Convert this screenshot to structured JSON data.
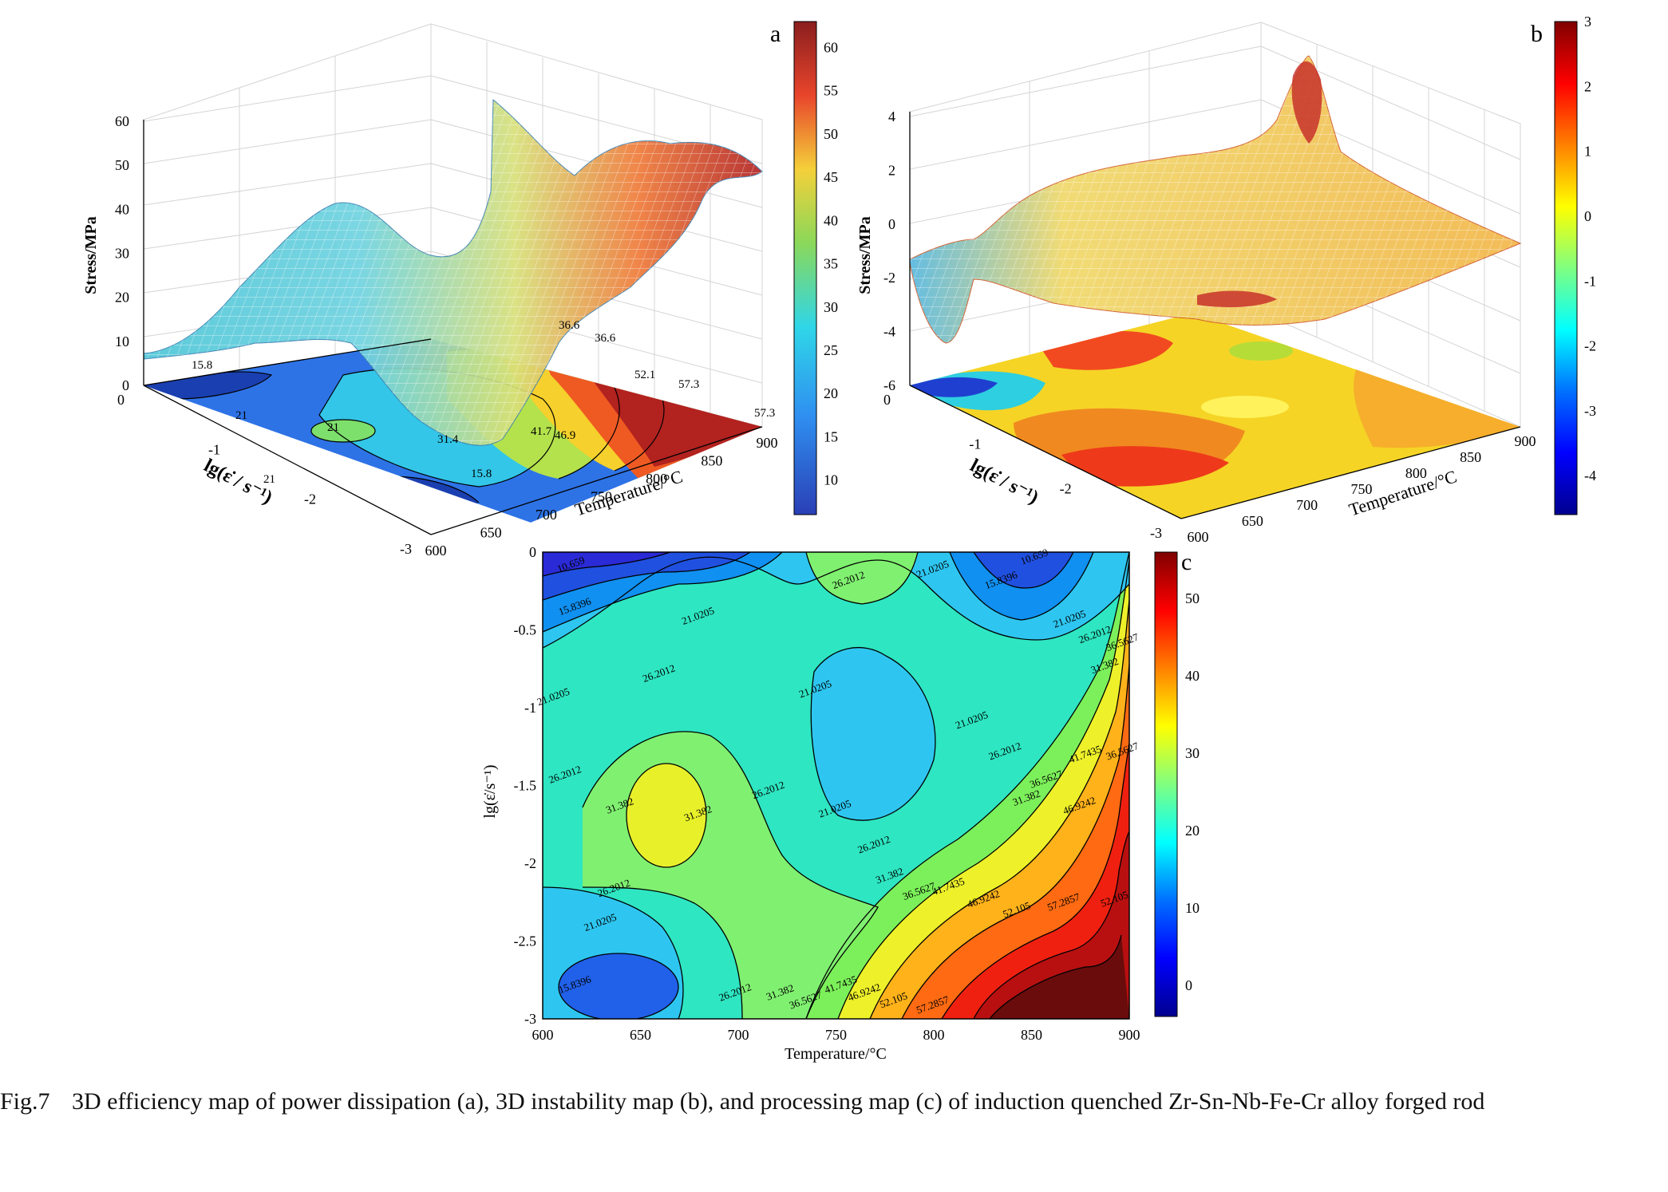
{
  "figure_caption": {
    "number": "Fig.7",
    "text": "3D efficiency map of power dissipation (a), 3D instability map (b), and processing map (c) of induction quenched Zr-Sn-Nb-Fe-Cr alloy forged rod"
  },
  "colors": {
    "jet": [
      "#00008f",
      "#0000ff",
      "#0080ff",
      "#00ffff",
      "#80ff80",
      "#ffff00",
      "#ff8000",
      "#ff0000",
      "#800000"
    ],
    "line": "#000000",
    "grid": "#cccccc",
    "caption_text": "#111111"
  },
  "chart_data": [
    {
      "id": "a",
      "panel_label": "a",
      "type": "3d-surface-with-contour",
      "title": "",
      "zlabel": "Stress/MPa",
      "ylabel": "lg(ε̇ / s⁻¹)",
      "xlabel": "Temperature/°C",
      "x_ticks": [
        "600",
        "650",
        "700",
        "750",
        "800",
        "850",
        "900"
      ],
      "y_ticks": [
        "0",
        "-1",
        "-2",
        "-3"
      ],
      "z_ticks": [
        "0",
        "10",
        "20",
        "30",
        "40",
        "50",
        "60"
      ],
      "xlim": [
        600,
        900
      ],
      "ylim": [
        -3,
        0
      ],
      "zlim": [
        0,
        60
      ],
      "colorbar": {
        "ticks": [
          "10",
          "15",
          "20",
          "25",
          "30",
          "35",
          "40",
          "45",
          "50",
          "55",
          "60"
        ],
        "range": [
          6,
          63
        ]
      },
      "contour_labels": [
        "36.6",
        "36.6",
        "52.1",
        "57.3",
        "57.3",
        "21",
        "21",
        "31.4",
        "41.7",
        "46.9",
        "15.8",
        "15.8",
        "21"
      ]
    },
    {
      "id": "b",
      "panel_label": "b",
      "type": "3d-surface-with-contour",
      "title": "",
      "zlabel": "Stress/MPa",
      "ylabel": "lg(ε̇ / s⁻¹)",
      "xlabel": "Temperature/°C",
      "x_ticks": [
        "600",
        "650",
        "700",
        "750",
        "800",
        "850",
        "900"
      ],
      "y_ticks": [
        "0",
        "-1",
        "-2",
        "-3"
      ],
      "z_ticks": [
        "-6",
        "-4",
        "-2",
        "0",
        "2",
        "4"
      ],
      "xlim": [
        600,
        900
      ],
      "ylim": [
        -3,
        0
      ],
      "zlim": [
        -6,
        4
      ],
      "colorbar": {
        "ticks": [
          "3",
          "2",
          "1",
          "0",
          "-1",
          "-2",
          "-3",
          "-4"
        ],
        "range": [
          -4.6,
          3
        ]
      }
    },
    {
      "id": "c",
      "panel_label": "c",
      "type": "contour",
      "title": "",
      "xlabel": "Temperature/°C",
      "ylabel": "lg(ε̇/s⁻¹)",
      "x_ticks": [
        "600",
        "650",
        "700",
        "750",
        "800",
        "850",
        "900"
      ],
      "y_ticks": [
        "0",
        "-0.5",
        "-1",
        "-1.5",
        "-2",
        "-2.5",
        "-3"
      ],
      "xlim": [
        600,
        900
      ],
      "ylim": [
        -3,
        0
      ],
      "levels": [
        10.659,
        15.8396,
        21.0205,
        26.2012,
        31.382,
        36.5627,
        41.7435,
        46.9242,
        52.105,
        57.2857
      ],
      "colorbar": {
        "ticks": [
          "50",
          "40",
          "30",
          "20",
          "10",
          "0"
        ],
        "range": [
          -4,
          56
        ]
      },
      "contour_labels": [
        {
          "text": "10.659",
          "x": 615,
          "y": -0.1
        },
        {
          "text": "15.8396",
          "x": 617,
          "y": -0.37
        },
        {
          "text": "21.0205",
          "x": 680,
          "y": -0.43
        },
        {
          "text": "26.2012",
          "x": 757,
          "y": -0.2
        },
        {
          "text": "21.0205",
          "x": 800,
          "y": -0.13
        },
        {
          "text": "15.8396",
          "x": 835,
          "y": -0.2
        },
        {
          "text": "10.659",
          "x": 852,
          "y": -0.05
        },
        {
          "text": "21.0205",
          "x": 870,
          "y": -0.45
        },
        {
          "text": "26.2012",
          "x": 883,
          "y": -0.55
        },
        {
          "text": "31.382",
          "x": 888,
          "y": -0.75
        },
        {
          "text": "36.5627",
          "x": 897,
          "y": -0.6
        },
        {
          "text": "21.0205",
          "x": 606,
          "y": -0.95
        },
        {
          "text": "26.2012",
          "x": 660,
          "y": -0.8
        },
        {
          "text": "21.0205",
          "x": 740,
          "y": -0.9
        },
        {
          "text": "21.0205",
          "x": 820,
          "y": -1.1
        },
        {
          "text": "26.2012",
          "x": 837,
          "y": -1.3
        },
        {
          "text": "31.382",
          "x": 848,
          "y": -1.6
        },
        {
          "text": "36.5627",
          "x": 858,
          "y": -1.48
        },
        {
          "text": "41.7435",
          "x": 878,
          "y": -1.32
        },
        {
          "text": "36.5627",
          "x": 897,
          "y": -1.3
        },
        {
          "text": "26.2012",
          "x": 612,
          "y": -1.45
        },
        {
          "text": "31.382",
          "x": 640,
          "y": -1.65
        },
        {
          "text": "31.382",
          "x": 680,
          "y": -1.7
        },
        {
          "text": "26.2012",
          "x": 716,
          "y": -1.55
        },
        {
          "text": "21.0205",
          "x": 750,
          "y": -1.67
        },
        {
          "text": "26.2012",
          "x": 770,
          "y": -1.9
        },
        {
          "text": "46.9242",
          "x": 875,
          "y": -1.65
        },
        {
          "text": "26.2012",
          "x": 637,
          "y": -2.18
        },
        {
          "text": "31.382",
          "x": 778,
          "y": -2.1
        },
        {
          "text": "36.5627",
          "x": 793,
          "y": -2.2
        },
        {
          "text": "41.7435",
          "x": 808,
          "y": -2.17
        },
        {
          "text": "46.9242",
          "x": 826,
          "y": -2.25
        },
        {
          "text": "52.105",
          "x": 843,
          "y": -2.32
        },
        {
          "text": "57.2857",
          "x": 867,
          "y": -2.27
        },
        {
          "text": "52.105",
          "x": 893,
          "y": -2.25
        },
        {
          "text": "21.0205",
          "x": 630,
          "y": -2.4
        },
        {
          "text": "26.2012",
          "x": 699,
          "y": -2.85
        },
        {
          "text": "31.382",
          "x": 722,
          "y": -2.85
        },
        {
          "text": "36.5627",
          "x": 735,
          "y": -2.9
        },
        {
          "text": "41.7435",
          "x": 753,
          "y": -2.8
        },
        {
          "text": "46.9242",
          "x": 765,
          "y": -2.85
        },
        {
          "text": "52.105",
          "x": 780,
          "y": -2.9
        },
        {
          "text": "57.2857",
          "x": 800,
          "y": -2.93
        },
        {
          "text": "15.8396",
          "x": 617,
          "y": -2.8
        }
      ]
    }
  ]
}
